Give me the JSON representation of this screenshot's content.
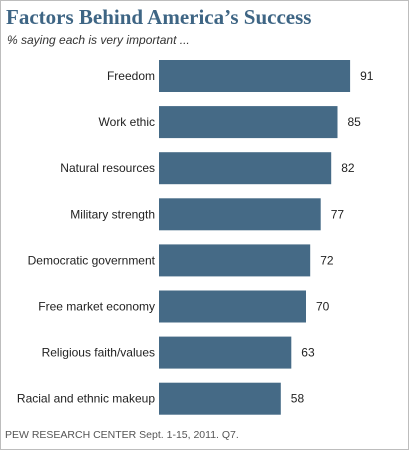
{
  "chart_data": {
    "type": "bar",
    "orientation": "horizontal",
    "title": "Factors Behind America’s Success",
    "subtitle": "% saying each is very important ...",
    "categories": [
      "Freedom",
      "Work ethic",
      "Natural resources",
      "Military strength",
      "Democratic government",
      "Free market economy",
      "Religious faith/values",
      "Racial and ethnic makeup"
    ],
    "values": [
      91,
      85,
      82,
      77,
      72,
      70,
      63,
      58
    ],
    "xlim": [
      0,
      100
    ],
    "grid": false,
    "legend": "none",
    "bar_color": "#456a86",
    "title_color": "#3e6584"
  },
  "source": "PEW RESEARCH CENTER Sept. 1-15, 2011. Q7."
}
